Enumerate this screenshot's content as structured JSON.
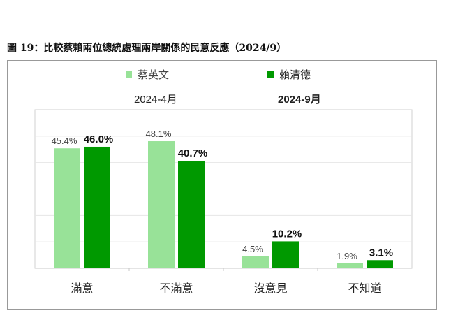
{
  "title": "圖 19：比較蔡賴兩位總統處理兩岸關係的民意反應（2024/9）",
  "chart_data": {
    "type": "bar",
    "title": "",
    "categories": [
      "滿意",
      "不滿意",
      "沒意見",
      "不知道"
    ],
    "series": [
      {
        "name": "蔡英文",
        "period": "2024-4月",
        "color": "#98e298",
        "values": [
          45.4,
          48.1,
          4.5,
          1.9
        ],
        "labels": [
          "45.4%",
          "48.1%",
          "4.5%",
          "1.9%"
        ]
      },
      {
        "name": "賴清德",
        "period": "2024-9月",
        "color": "#009900",
        "values": [
          46.0,
          40.7,
          10.2,
          3.1
        ],
        "labels": [
          "46.0%",
          "40.7%",
          "10.2%",
          "3.1%"
        ]
      }
    ],
    "ylim": [
      0,
      60
    ],
    "grid": true,
    "legend": "top",
    "xlabel": "",
    "ylabel": ""
  }
}
